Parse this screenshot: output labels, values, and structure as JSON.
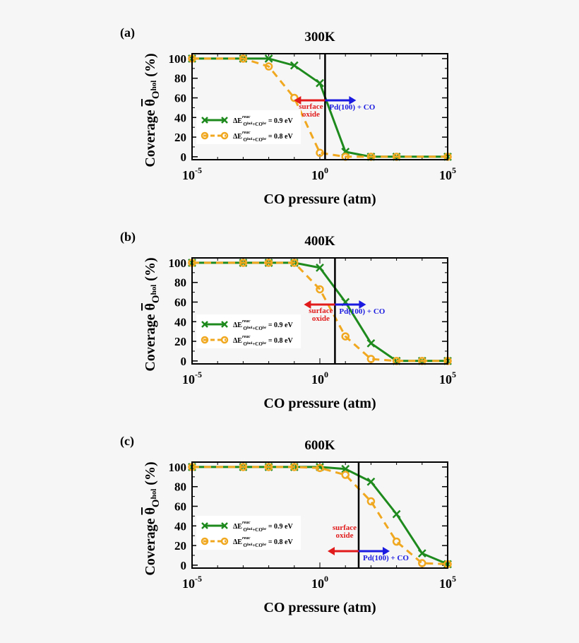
{
  "chart_data": [
    {
      "type": "line",
      "panel_label": "(a)",
      "title": "300K",
      "xlabel": "CO pressure (atm)",
      "ylabel": "Coverage θ̄Ohol (%)",
      "xscale": "log",
      "xlim": [
        1e-05,
        100000
      ],
      "ylim": [
        -3,
        105
      ],
      "x_ticks": [
        "-5",
        "0",
        "5"
      ],
      "y_ticks": [
        0,
        20,
        40,
        60,
        80,
        100
      ],
      "vline_x": 1.6,
      "series": [
        {
          "name": "ΔE reac O hol+CO br = 0.9 eV",
          "color": "#1e8a1e",
          "marker": "x",
          "dash": "solid",
          "x": [
            1e-05,
            0.001,
            0.01,
            0.1,
            1,
            10,
            100,
            1000,
            100000
          ],
          "y": [
            100,
            100,
            100,
            93,
            75,
            5,
            0,
            0,
            0
          ]
        },
        {
          "name": "ΔE reac O hol+CO br = 0.8 eV",
          "color": "#f0a820",
          "marker": "o",
          "dash": "dashed",
          "x": [
            1e-05,
            0.001,
            0.01,
            0.1,
            1,
            10,
            100,
            1000,
            100000
          ],
          "y": [
            100,
            100,
            92,
            60,
            4,
            0,
            0,
            0,
            0
          ]
        }
      ],
      "annotations": {
        "left": "surface\noxide",
        "right": "Pd(100) + CO"
      }
    },
    {
      "type": "line",
      "panel_label": "(b)",
      "title": "400K",
      "xlabel": "CO pressure (atm)",
      "ylabel": "Coverage θ̄Ohol (%)",
      "xscale": "log",
      "xlim": [
        1e-05,
        100000
      ],
      "ylim": [
        -3,
        105
      ],
      "x_ticks": [
        "-5",
        "0",
        "5"
      ],
      "y_ticks": [
        0,
        20,
        40,
        60,
        80,
        100
      ],
      "vline_x": 3.9,
      "series": [
        {
          "name": "ΔE reac O hol+CO br = 0.9 eV",
          "color": "#1e8a1e",
          "marker": "x",
          "dash": "solid",
          "x": [
            1e-05,
            0.001,
            0.01,
            0.1,
            1,
            10,
            100,
            1000,
            10000,
            100000
          ],
          "y": [
            100,
            100,
            100,
            100,
            95,
            60,
            18,
            0,
            0,
            0
          ]
        },
        {
          "name": "ΔE reac O hol+CO br = 0.8 eV",
          "color": "#f0a820",
          "marker": "o",
          "dash": "dashed",
          "x": [
            1e-05,
            0.001,
            0.01,
            0.1,
            1,
            10,
            100,
            1000,
            10000,
            100000
          ],
          "y": [
            100,
            100,
            100,
            100,
            73,
            25,
            2,
            0,
            0,
            0
          ]
        }
      ],
      "annotations": {
        "left": "surface\noxide",
        "right": "Pd(100) + CO"
      }
    },
    {
      "type": "line",
      "panel_label": "(c)",
      "title": "600K",
      "xlabel": "CO pressure (atm)",
      "ylabel": "Coverage θ̄Ohol (%)",
      "xscale": "log",
      "xlim": [
        1e-05,
        100000
      ],
      "ylim": [
        -3,
        105
      ],
      "x_ticks": [
        "-5",
        "0",
        "5"
      ],
      "y_ticks": [
        0,
        20,
        40,
        60,
        80,
        100
      ],
      "vline_x": 33,
      "series": [
        {
          "name": "ΔE reac O hol+CO br = 0.9 eV",
          "color": "#1e8a1e",
          "marker": "x",
          "dash": "solid",
          "x": [
            1e-05,
            0.001,
            0.01,
            0.1,
            1,
            10,
            100,
            1000,
            10000,
            100000
          ],
          "y": [
            100,
            100,
            100,
            100,
            100,
            98,
            85,
            52,
            12,
            1
          ]
        },
        {
          "name": "ΔE reac O hol+CO br = 0.8 eV",
          "color": "#f0a820",
          "marker": "o",
          "dash": "dashed",
          "x": [
            1e-05,
            0.001,
            0.01,
            0.1,
            1,
            10,
            100,
            1000,
            10000,
            100000
          ],
          "y": [
            100,
            100,
            100,
            100,
            99,
            92,
            65,
            24,
            2,
            1
          ]
        }
      ],
      "annotations": {
        "left": "surface\noxide",
        "right": "Pd(100) + CO"
      }
    }
  ],
  "ylabel_parts": {
    "main": "Coverage ",
    "theta": "θ",
    "sub_o": "O",
    "sub_hol": "hol",
    "unit": " (%)"
  },
  "legend_parts": {
    "delta_e": "ΔE",
    "reac": "reac",
    "o": "O",
    "hol": "hol",
    "plus_co": "+CO",
    "br": "br",
    "values": [
      "= 0.9 eV",
      "= 0.8 eV"
    ]
  },
  "colors": {
    "green": "#1e8a1e",
    "orange": "#f0a820",
    "red": "#e11b1b",
    "blue": "#1a1ae0",
    "axis": "#000000",
    "background": "#f6f6f6"
  }
}
